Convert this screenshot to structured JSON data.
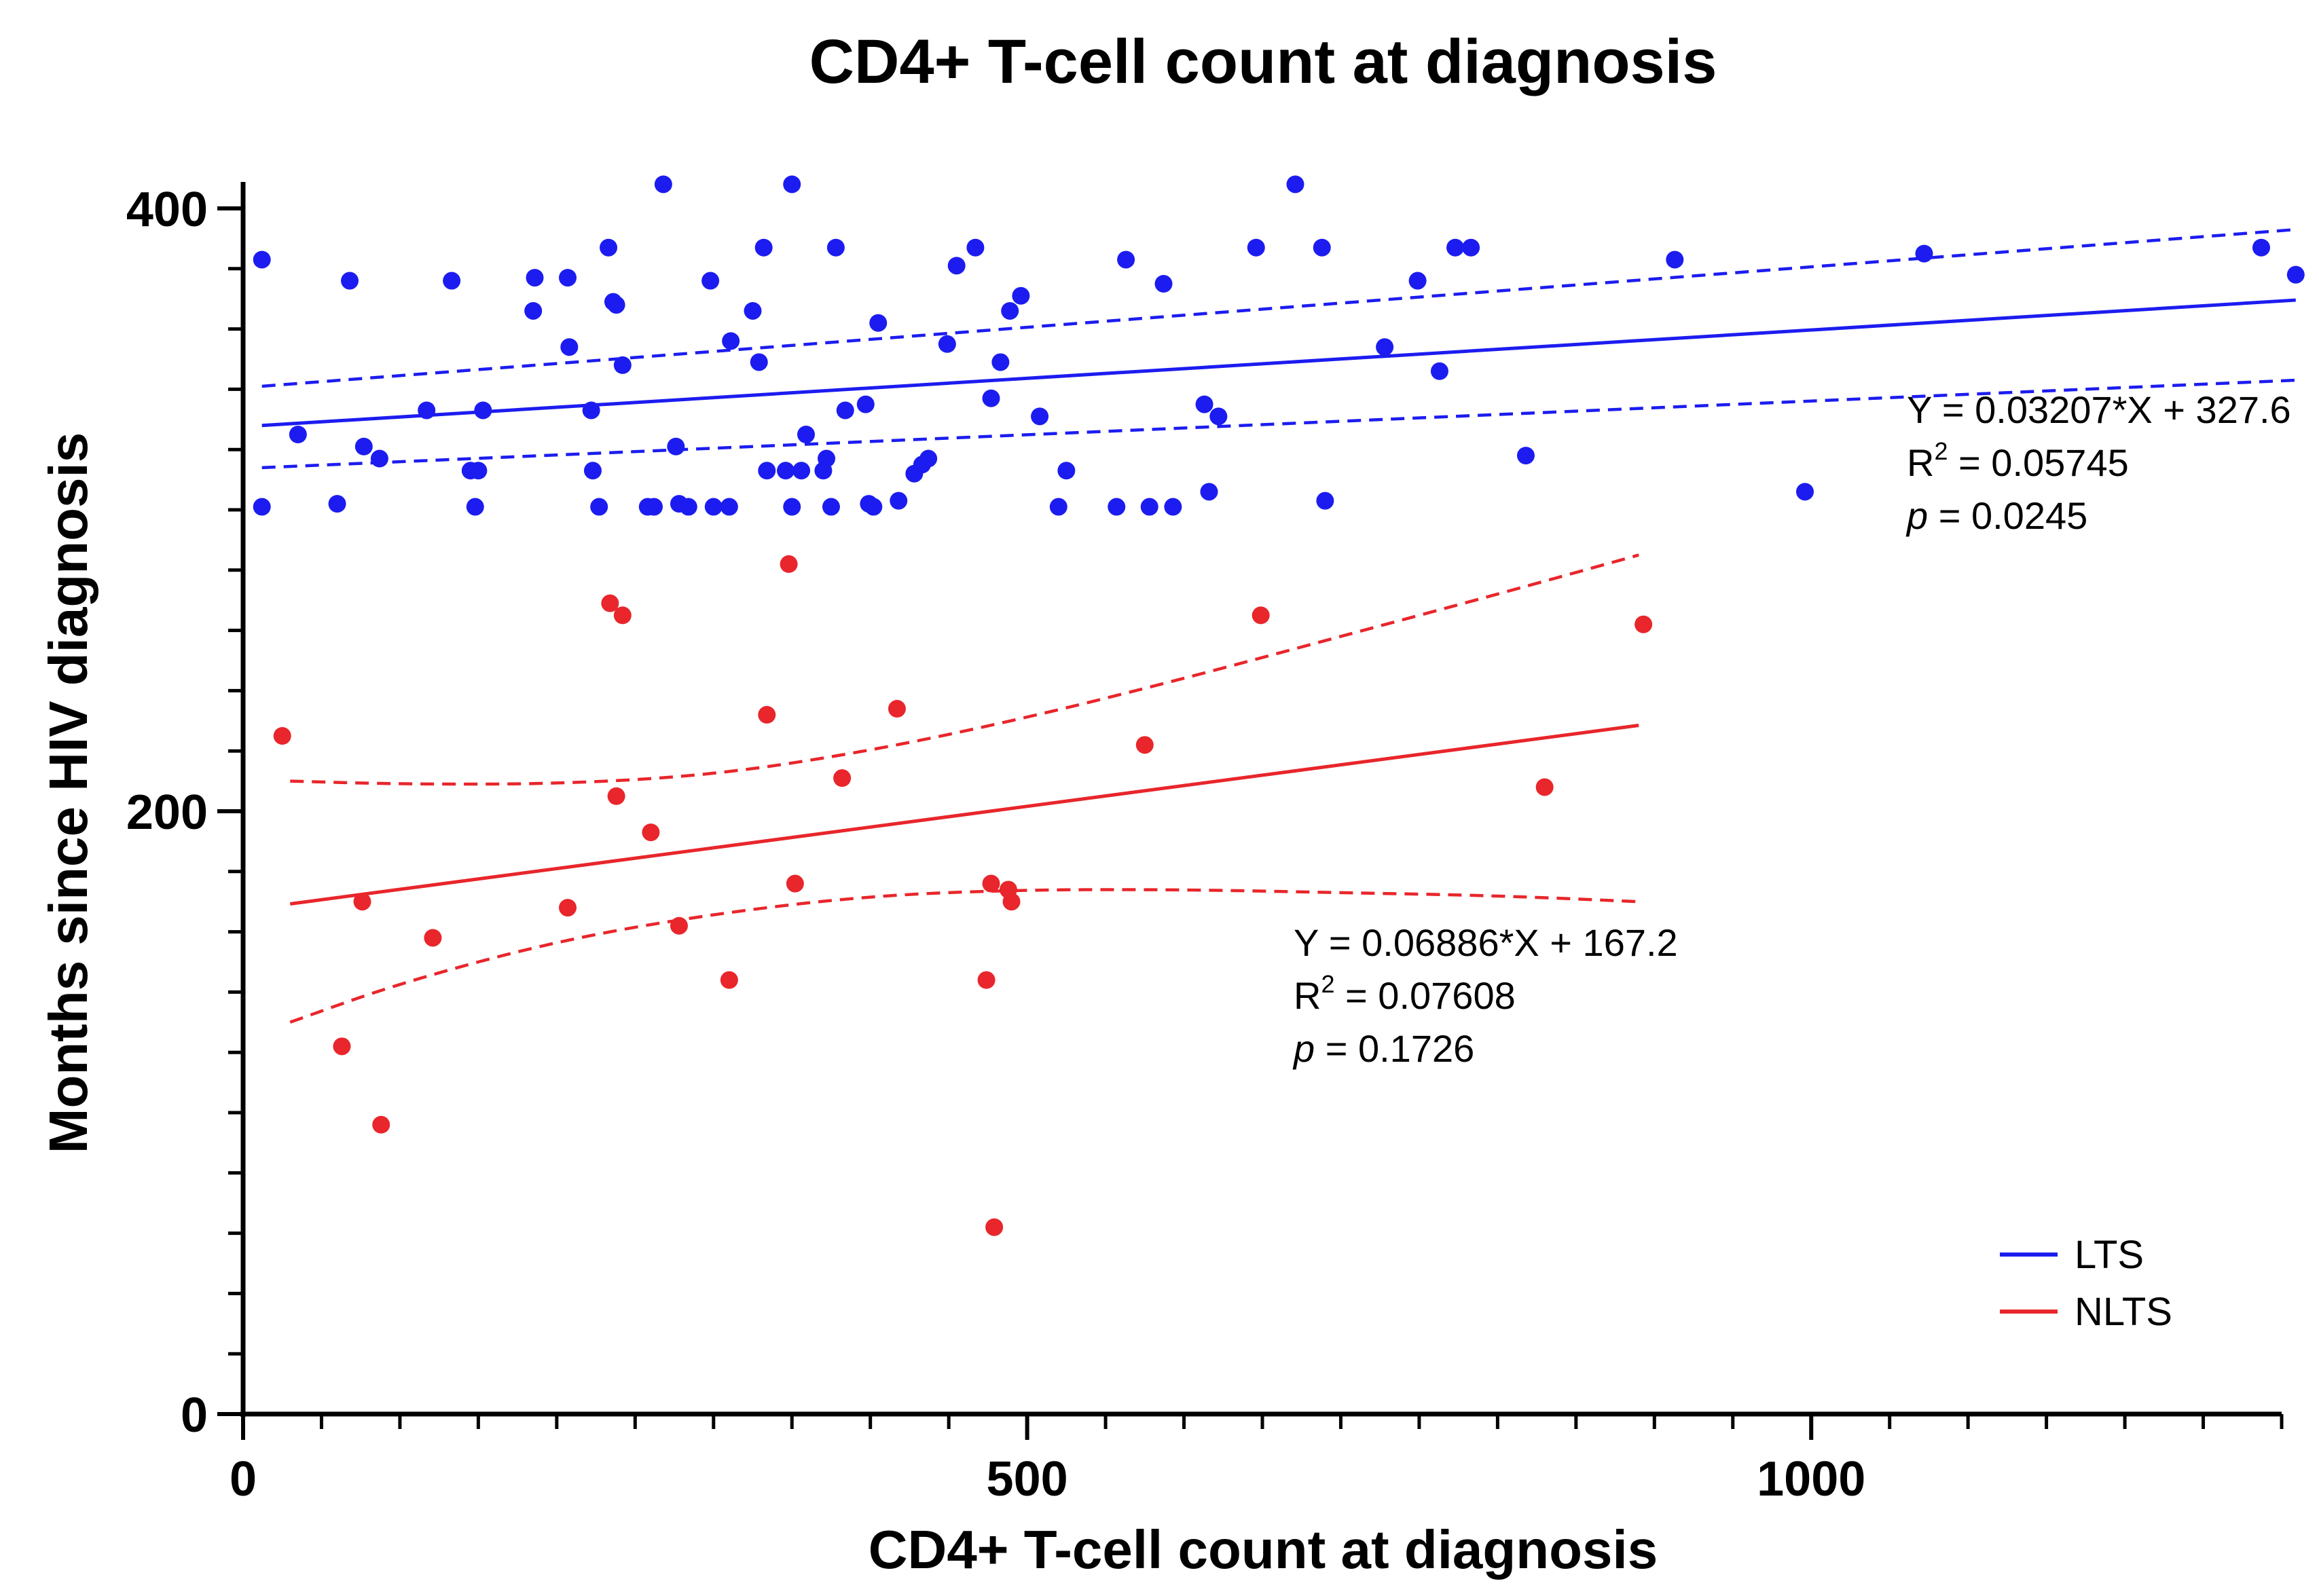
{
  "chart_data": {
    "type": "scatter",
    "title": "CD4+ T-cell count at diagnosis",
    "xlabel": "CD4+ T-cell count at diagnosis",
    "ylabel": "Months since HIV diagnosis",
    "xlim": [
      0,
      1300
    ],
    "ylim": [
      0,
      400
    ],
    "xticks": [
      0,
      500,
      1000
    ],
    "xticks_minor": [
      50,
      100,
      150,
      200,
      250,
      300,
      350,
      400,
      450,
      550,
      600,
      650,
      700,
      750,
      800,
      850,
      900,
      950,
      1050,
      1100,
      1150,
      1200,
      1250,
      1300
    ],
    "yticks": [
      0,
      200,
      400
    ],
    "yticks_minor": [
      20,
      40,
      60,
      80,
      100,
      120,
      140,
      160,
      180,
      220,
      240,
      260,
      280,
      300,
      320,
      340,
      360,
      380
    ],
    "grid": false,
    "legend_position": "bottom-right",
    "series": [
      {
        "name": "LTS",
        "color": "#1c1cf0",
        "points": [
          [
            12,
            383
          ],
          [
            12,
            301
          ],
          [
            35,
            325
          ],
          [
            60,
            302
          ],
          [
            68,
            376
          ],
          [
            77,
            321
          ],
          [
            87,
            317
          ],
          [
            117,
            333
          ],
          [
            133,
            376
          ],
          [
            145,
            313
          ],
          [
            148,
            301
          ],
          [
            150,
            313
          ],
          [
            153,
            333
          ],
          [
            185,
            366
          ],
          [
            186,
            377
          ],
          [
            207,
            377
          ],
          [
            208,
            354
          ],
          [
            222,
            333
          ],
          [
            223,
            313
          ],
          [
            227,
            301
          ],
          [
            233,
            387
          ],
          [
            236,
            369
          ],
          [
            238,
            368
          ],
          [
            242,
            348
          ],
          [
            258,
            301
          ],
          [
            262,
            301
          ],
          [
            268,
            408
          ],
          [
            276,
            321
          ],
          [
            278,
            302
          ],
          [
            284,
            301
          ],
          [
            298,
            376
          ],
          [
            300,
            301
          ],
          [
            310,
            301
          ],
          [
            311,
            356
          ],
          [
            325,
            366
          ],
          [
            329,
            349
          ],
          [
            332,
            387
          ],
          [
            334,
            313
          ],
          [
            346,
            313
          ],
          [
            350,
            408
          ],
          [
            350,
            301
          ],
          [
            356,
            313
          ],
          [
            359,
            325
          ],
          [
            370,
            313
          ],
          [
            372,
            317
          ],
          [
            375,
            301
          ],
          [
            378,
            387
          ],
          [
            384,
            333
          ],
          [
            397,
            335
          ],
          [
            399,
            302
          ],
          [
            402,
            301
          ],
          [
            405,
            362
          ],
          [
            418,
            303
          ],
          [
            428,
            312
          ],
          [
            433,
            315
          ],
          [
            437,
            317
          ],
          [
            449,
            355
          ],
          [
            455,
            381
          ],
          [
            467,
            387
          ],
          [
            477,
            337
          ],
          [
            483,
            349
          ],
          [
            489,
            366
          ],
          [
            496,
            371
          ],
          [
            508,
            331
          ],
          [
            520,
            301
          ],
          [
            525,
            313
          ],
          [
            557,
            301
          ],
          [
            563,
            383
          ],
          [
            578,
            301
          ],
          [
            587,
            375
          ],
          [
            593,
            301
          ],
          [
            613,
            335
          ],
          [
            616,
            306
          ],
          [
            622,
            331
          ],
          [
            646,
            387
          ],
          [
            671,
            408
          ],
          [
            688,
            387
          ],
          [
            690,
            303
          ],
          [
            728,
            354
          ],
          [
            749,
            376
          ],
          [
            763,
            346
          ],
          [
            773,
            387
          ],
          [
            783,
            387
          ],
          [
            818,
            318
          ],
          [
            913,
            383
          ],
          [
            996,
            306
          ],
          [
            1072,
            385
          ],
          [
            1287,
            387
          ],
          [
            1309,
            378
          ]
        ],
        "regression": {
          "slope": 0.03207,
          "intercept": 327.6,
          "x_range": [
            12,
            1309
          ]
        },
        "ci_band": {
          "x": [
            12,
            1309
          ],
          "upper": [
            341,
            393
          ],
          "lower": [
            314,
            343
          ]
        },
        "equation_text": "Y = 0.03207*X + 327.6",
        "r2_label": "R",
        "r2_sup": "2",
        "r2_value": " = 0.05745",
        "p_label": "p",
        "p_value": " = 0.0245"
      },
      {
        "name": "NLTS",
        "color": "#e8262b",
        "points": [
          [
            25,
            225
          ],
          [
            63,
            122
          ],
          [
            76,
            170
          ],
          [
            88,
            96
          ],
          [
            121,
            158
          ],
          [
            207,
            168
          ],
          [
            234,
            269
          ],
          [
            238,
            205
          ],
          [
            242,
            265
          ],
          [
            260,
            193
          ],
          [
            278,
            162
          ],
          [
            310,
            144
          ],
          [
            334,
            232
          ],
          [
            348,
            282
          ],
          [
            352,
            176
          ],
          [
            382,
            211
          ],
          [
            417,
            234
          ],
          [
            474,
            144
          ],
          [
            477,
            176
          ],
          [
            479,
            62
          ],
          [
            488,
            174
          ],
          [
            490,
            170
          ],
          [
            575,
            222
          ],
          [
            649,
            265
          ],
          [
            830,
            208
          ],
          [
            893,
            262
          ]
        ],
        "regression": {
          "slope": 0.06886,
          "intercept": 167.2,
          "x_range": [
            30,
            890
          ]
        },
        "ci_band": {
          "x": [
            30,
            100,
            200,
            300,
            400,
            500,
            600,
            700,
            800,
            890
          ],
          "upper": [
            210,
            209,
            209,
            212,
            220,
            231,
            244,
            258,
            272,
            285
          ],
          "lower": [
            130,
            143,
            157,
            166,
            172,
            174,
            174,
            173,
            172,
            170
          ]
        },
        "equation_text": "Y = 0.06886*X + 167.2",
        "r2_label": "R",
        "r2_sup": "2",
        "r2_value": " = 0.07608",
        "p_label": "p",
        "p_value": " = 0.1726"
      }
    ]
  }
}
